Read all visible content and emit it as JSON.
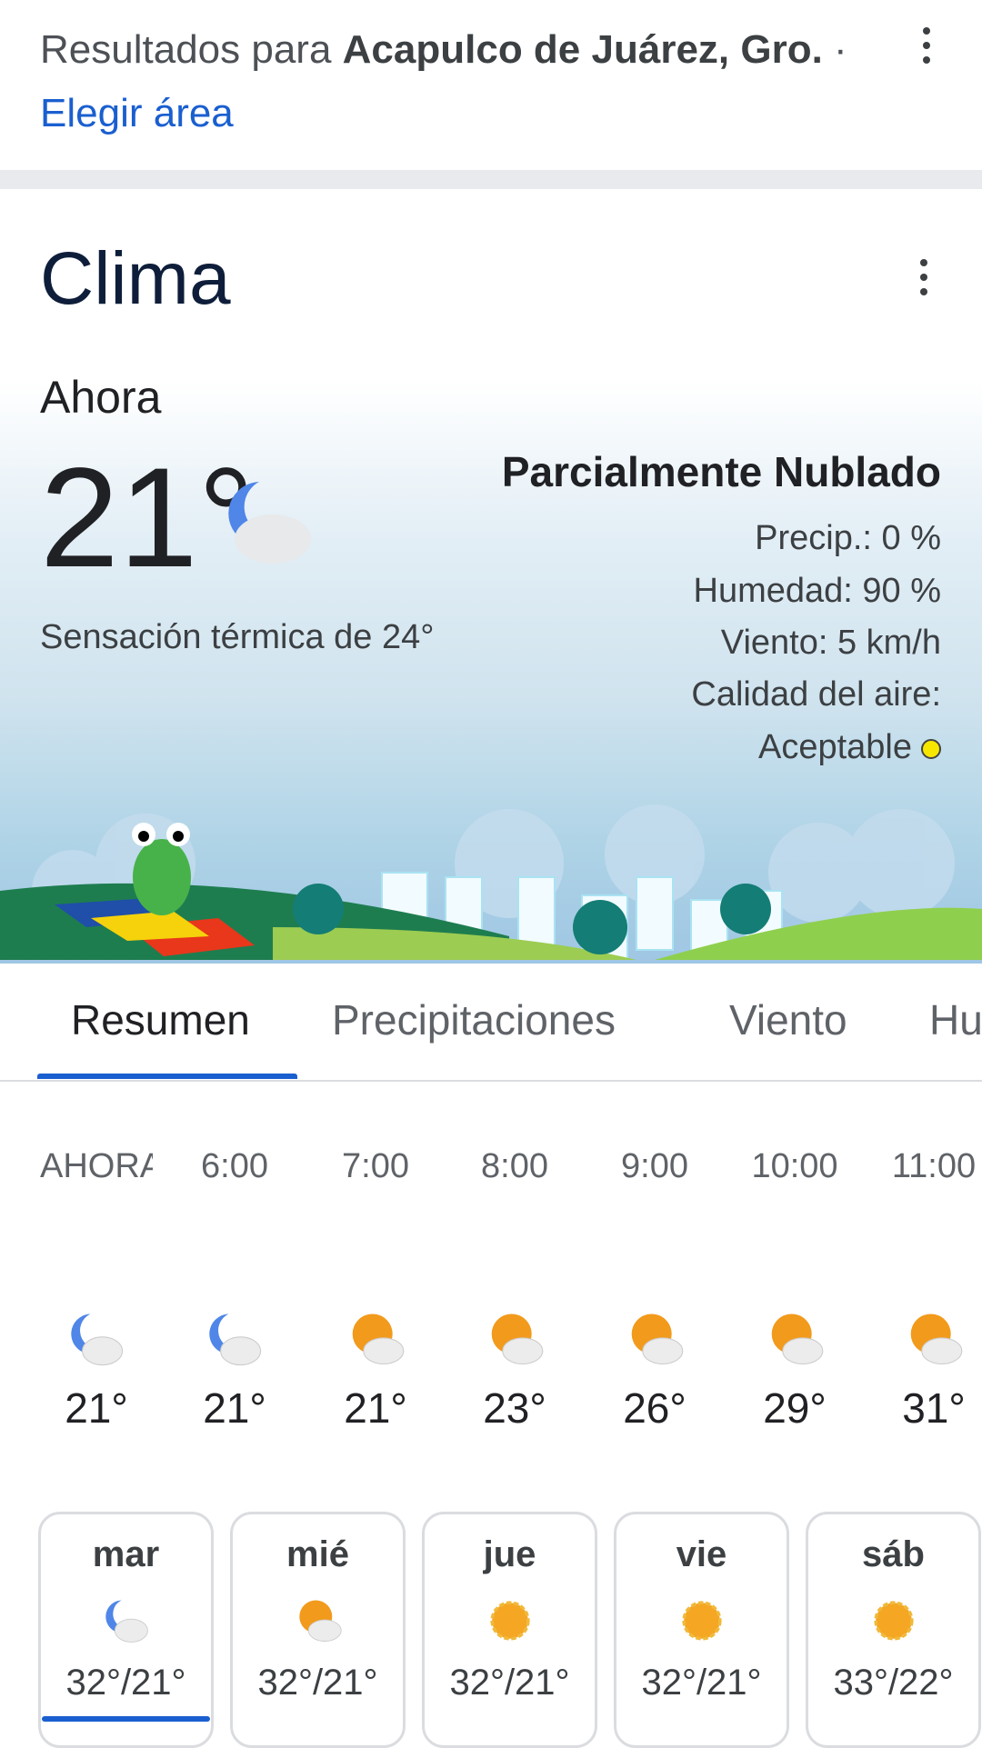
{
  "header": {
    "prefix": "Resultados para ",
    "location": "Acapulco de Juárez, Gro.",
    "separator": " · ",
    "choose_area": "Elegir área"
  },
  "weather": {
    "title": "Clima",
    "now_label": "Ahora",
    "temp": "21°",
    "condition": "Parcialmente Nublado",
    "feels_like": "Sensación térmica de 24°",
    "precip": "Precip.: 0 %",
    "humidity": "Humedad: 90 %",
    "wind": "Viento: 5 km/h",
    "air_quality_label": "Calidad del aire:",
    "air_quality_value": "Aceptable",
    "air_quality_color": "#f7e700",
    "icon": "partly-cloudy-night-icon"
  },
  "tabs": [
    {
      "label": "Resumen",
      "active": true
    },
    {
      "label": "Precipitaciones"
    },
    {
      "label": "Viento"
    },
    {
      "label": "Hu"
    }
  ],
  "hourly": [
    {
      "time": "AHORA",
      "temp": "21°",
      "icon": "partly-cloudy-night"
    },
    {
      "time": "6:00",
      "temp": "21°",
      "icon": "partly-cloudy-night"
    },
    {
      "time": "7:00",
      "temp": "21°",
      "icon": "partly-cloudy-day"
    },
    {
      "time": "8:00",
      "temp": "23°",
      "icon": "partly-cloudy-day"
    },
    {
      "time": "9:00",
      "temp": "26°",
      "icon": "partly-cloudy-day"
    },
    {
      "time": "10:00",
      "temp": "29°",
      "icon": "partly-cloudy-day"
    },
    {
      "time": "11:00",
      "temp": "31°",
      "icon": "partly-cloudy-day"
    }
  ],
  "daily": [
    {
      "day": "mar",
      "temps": "32°/21°",
      "icon": "partly-cloudy-night",
      "selected": true
    },
    {
      "day": "mié",
      "temps": "32°/21°",
      "icon": "partly-cloudy-day"
    },
    {
      "day": "jue",
      "temps": "32°/21°",
      "icon": "sunny"
    },
    {
      "day": "vie",
      "temps": "32°/21°",
      "icon": "sunny"
    },
    {
      "day": "sáb",
      "temps": "33°/22°",
      "icon": "sunny"
    }
  ],
  "colors": {
    "accent": "#1a5fd0",
    "sun": "#f5a623",
    "moon": "#4f86e8"
  }
}
